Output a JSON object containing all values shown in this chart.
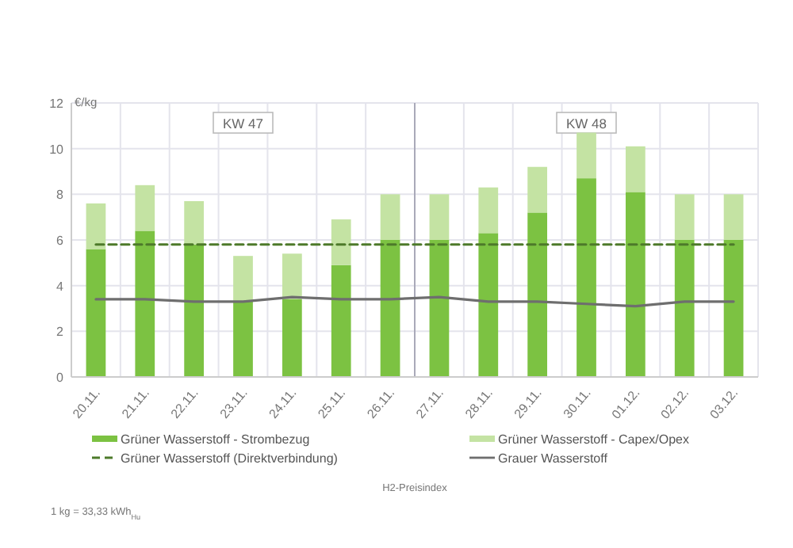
{
  "chart_data": {
    "type": "bar",
    "ylabel": "€/kg",
    "stacked": true,
    "categories": [
      "20.11.",
      "21.11.",
      "22.11.",
      "23.11.",
      "24.11.",
      "25.11.",
      "26.11.",
      "27.11.",
      "28.11.",
      "29.11.",
      "30.11.",
      "01.12.",
      "02.12.",
      "03.12."
    ],
    "series": [
      {
        "name": "Grüner Wasserstoff - Strombezug",
        "color": "#7cc242",
        "values": [
          5.6,
          6.4,
          5.8,
          3.3,
          3.4,
          4.9,
          6.0,
          6.0,
          6.3,
          7.2,
          8.7,
          8.1,
          6.0,
          6.0
        ]
      },
      {
        "name": "Grüner Wasserstoff - Capex/Opex",
        "color": "#c4e3a3",
        "values": [
          2.0,
          2.0,
          1.9,
          2.0,
          2.0,
          2.0,
          2.0,
          2.0,
          2.0,
          2.0,
          2.0,
          2.0,
          2.0,
          2.0
        ]
      },
      {
        "name": "Grüner Wasserstoff (Direktverbindung)",
        "type": "line",
        "line_style": "dashed",
        "color": "#4d7a2a",
        "values": [
          5.8,
          5.8,
          5.8,
          5.8,
          5.8,
          5.8,
          5.8,
          5.8,
          5.8,
          5.8,
          5.8,
          5.8,
          5.8,
          5.8
        ]
      },
      {
        "name": "Grauer Wasserstoff",
        "type": "line",
        "line_style": "solid",
        "color": "#6e6e6e",
        "values": [
          3.4,
          3.4,
          3.3,
          3.3,
          3.5,
          3.4,
          3.4,
          3.5,
          3.3,
          3.3,
          3.2,
          3.1,
          3.3,
          3.3
        ]
      }
    ],
    "ylim": [
      0,
      12
    ],
    "yticks": [
      0,
      2,
      4,
      6,
      8,
      10,
      12
    ],
    "grid": true,
    "legend": "bottom",
    "ref_lines": [
      {
        "axis": "x",
        "value": "27.11.",
        "color": "#a9a9b9"
      }
    ],
    "annotations": [
      {
        "text": "KW 47",
        "x": "23.11."
      },
      {
        "text": "KW 48",
        "x": "30.11."
      },
      "H2-Preisindex",
      "1 kg = 33,33 kWh$_{Hu}$"
    ]
  }
}
